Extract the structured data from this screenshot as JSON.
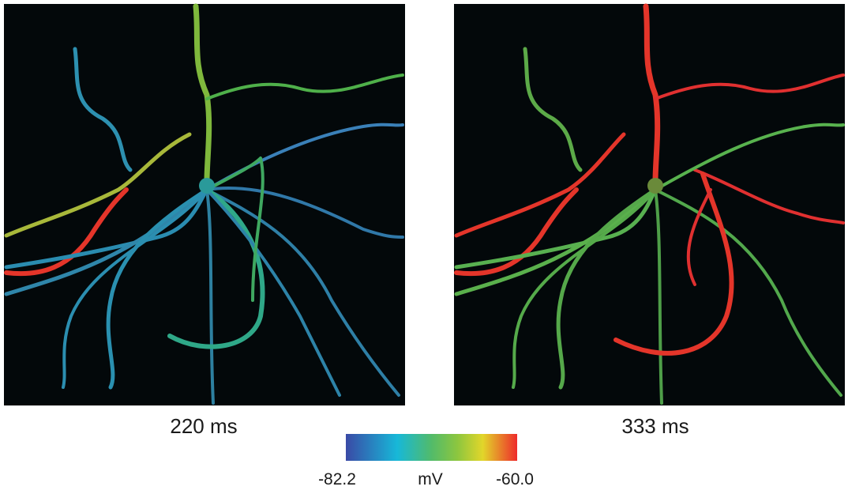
{
  "panels": [
    {
      "label": "220 ms"
    },
    {
      "label": "333 ms"
    }
  ],
  "colorbar": {
    "min_label": "-82.2",
    "unit": "mV",
    "max_label": "-60.0"
  }
}
